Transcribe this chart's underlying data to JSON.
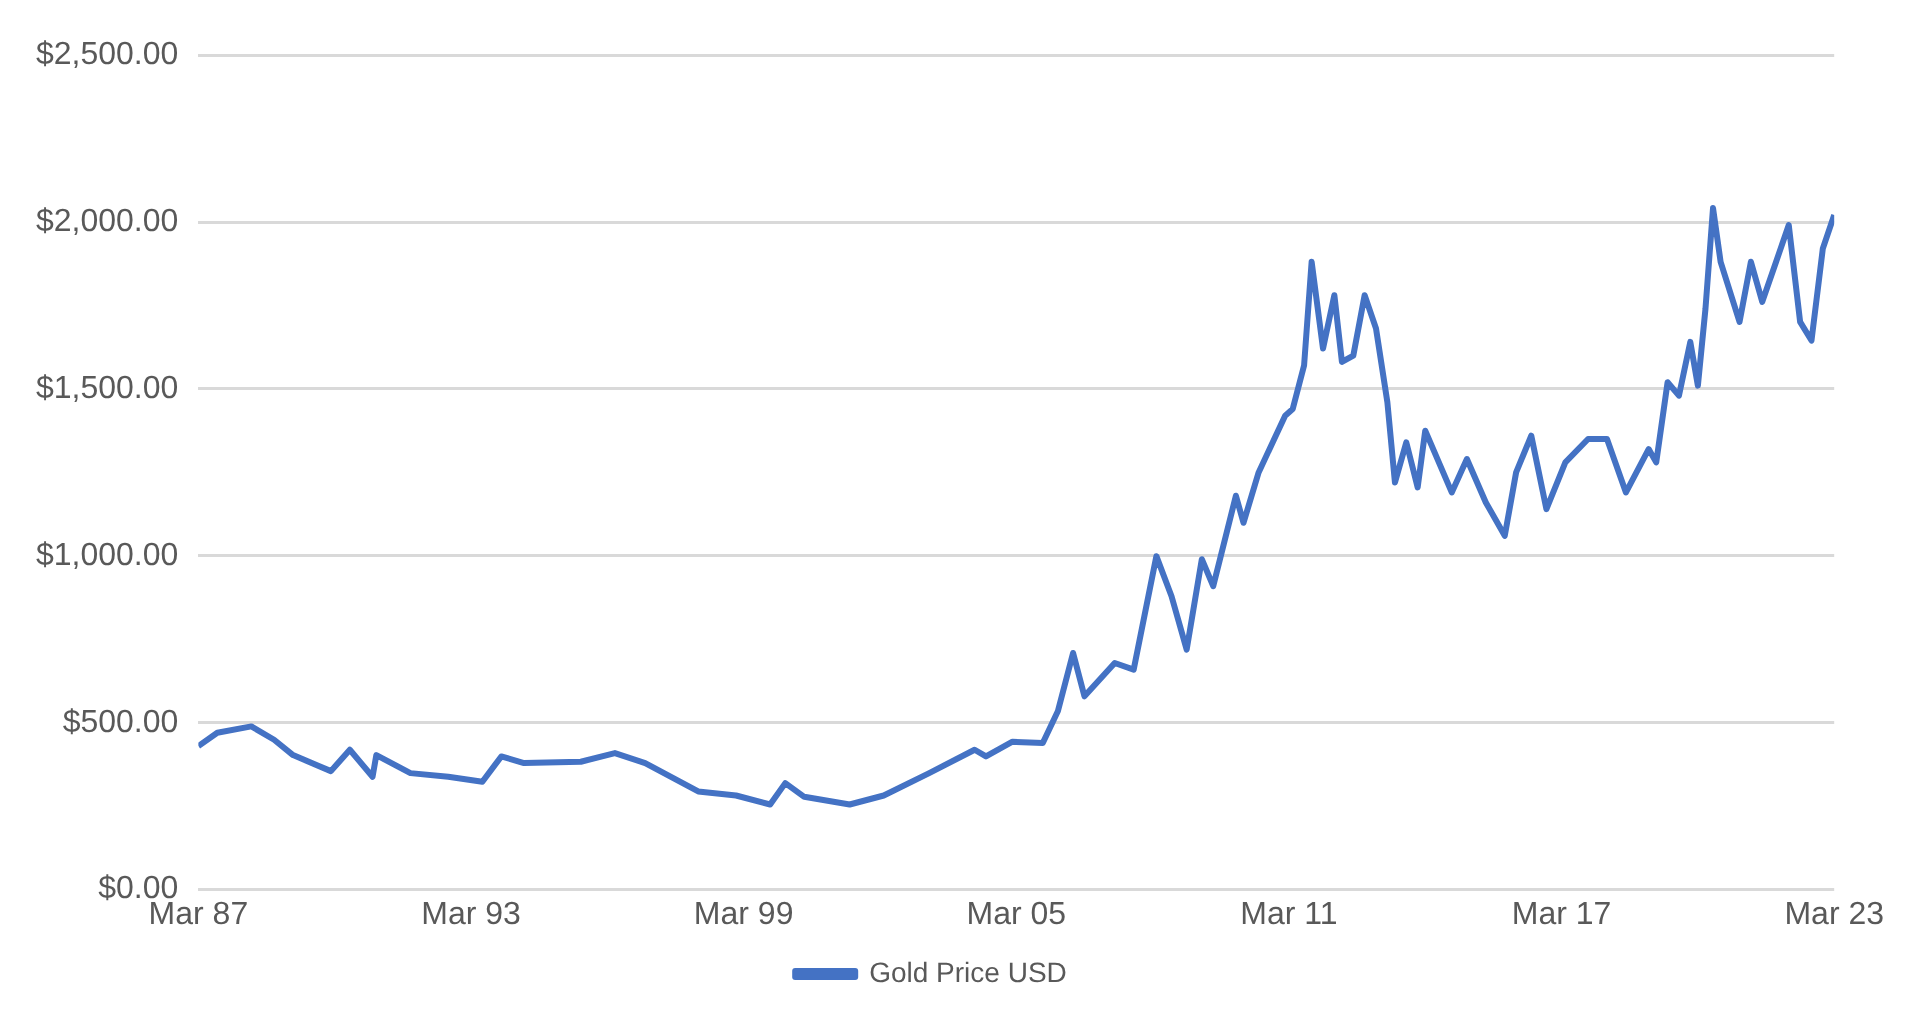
{
  "chart_data": {
    "type": "line",
    "x": [
      "1987-03",
      "1987-08",
      "1988-05",
      "1988-11",
      "1989-04",
      "1990-02",
      "1990-07",
      "1991-01",
      "1991-02",
      "1991-11",
      "1992-09",
      "1993-06",
      "1993-11",
      "1994-05",
      "1995-08",
      "1996-05",
      "1997-01",
      "1998-03",
      "1999-01",
      "1999-10",
      "2000-02",
      "2000-07",
      "2001-07",
      "2002-04",
      "2003-04",
      "2004-04",
      "2004-07",
      "2005-02",
      "2005-10",
      "2006-02",
      "2006-06",
      "2006-09",
      "2007-05",
      "2007-10",
      "2008-04",
      "2008-08",
      "2008-12",
      "2009-04",
      "2009-07",
      "2010-01",
      "2010-03",
      "2010-07",
      "2011-02",
      "2011-04",
      "2011-07",
      "2011-09",
      "2011-12",
      "2012-03",
      "2012-05",
      "2012-08",
      "2012-11",
      "2013-02",
      "2013-05",
      "2013-07",
      "2013-10",
      "2014-01",
      "2014-03",
      "2014-10",
      "2015-02",
      "2015-07",
      "2015-12",
      "2016-03",
      "2016-07",
      "2016-11",
      "2017-04",
      "2017-10",
      "2018-03",
      "2018-08",
      "2019-02",
      "2019-04",
      "2019-07",
      "2019-10",
      "2020-01",
      "2020-03",
      "2020-05",
      "2020-07",
      "2020-09",
      "2021-02",
      "2021-05",
      "2021-08",
      "2022-03",
      "2022-06",
      "2022-09",
      "2022-12",
      "2023-03"
    ],
    "series": [
      {
        "name": "Gold Price USD",
        "color": "#4472c4",
        "values": [
          430,
          470,
          489,
          449,
          403,
          355,
          419,
          338,
          403,
          349,
          338,
          323,
          399,
          379,
          383,
          409,
          379,
          294,
          282,
          255,
          319,
          278,
          255,
          282,
          349,
          419,
          399,
          443,
          439,
          535,
          709,
          579,
          679,
          659,
          999,
          879,
          719,
          990,
          909,
          1180,
          1099,
          1250,
          1420,
          1440,
          1570,
          1881,
          1621,
          1781,
          1581,
          1600,
          1781,
          1681,
          1460,
          1220,
          1340,
          1205,
          1375,
          1190,
          1290,
          1160,
          1060,
          1250,
          1360,
          1140,
          1280,
          1350,
          1350,
          1190,
          1320,
          1280,
          1520,
          1480,
          1641,
          1510,
          1740,
          2042,
          1881,
          1701,
          1881,
          1761,
          1991,
          1701,
          1645,
          1921,
          2021
        ]
      }
    ],
    "xlim": [
      "1987-03",
      "2023-03"
    ],
    "xticks": [
      {
        "value": "1987-03",
        "label": "Mar 87"
      },
      {
        "value": "1993-03",
        "label": "Mar 93"
      },
      {
        "value": "1999-03",
        "label": "Mar 99"
      },
      {
        "value": "2005-03",
        "label": "Mar 05"
      },
      {
        "value": "2011-03",
        "label": "Mar 11"
      },
      {
        "value": "2017-03",
        "label": "Mar 17"
      },
      {
        "value": "2023-03",
        "label": "Mar 23"
      }
    ],
    "ylim": [
      0,
      2500
    ],
    "yticks": [
      {
        "value": 0,
        "label": "$0.00"
      },
      {
        "value": 500,
        "label": "$500.00"
      },
      {
        "value": 1000,
        "label": "$1,000.00"
      },
      {
        "value": 1500,
        "label": "$1,500.00"
      },
      {
        "value": 2000,
        "label": "$2,000.00"
      },
      {
        "value": 2500,
        "label": "$2,500.00"
      }
    ],
    "grid": "y",
    "legend": "bottom",
    "marker": "none",
    "line_style": "solid"
  }
}
